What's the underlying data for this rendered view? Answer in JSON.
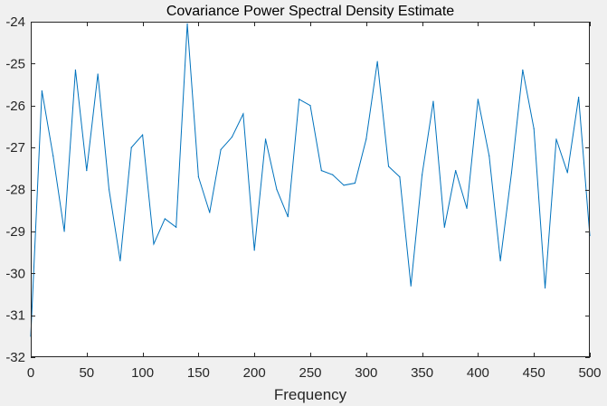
{
  "chart_data": {
    "type": "line",
    "title": "Covariance Power Spectral Density Estimate",
    "xlabel": "Frequency",
    "ylabel": "",
    "xlim": [
      0,
      500
    ],
    "ylim": [
      -32,
      -24
    ],
    "xticks": [
      0,
      50,
      100,
      150,
      200,
      250,
      300,
      350,
      400,
      450,
      500
    ],
    "yticks": [
      -32,
      -31,
      -30,
      -29,
      -28,
      -27,
      -26,
      -25,
      -24
    ],
    "xtick_labels": [
      "0",
      "50",
      "100",
      "150",
      "200",
      "250",
      "300",
      "350",
      "400",
      "450",
      "500"
    ],
    "ytick_labels": [
      "-32",
      "-31",
      "-30",
      "-29",
      "-28",
      "-27",
      "-26",
      "-25",
      "-24"
    ],
    "grid": false,
    "legend": "none",
    "series": [
      {
        "x": [
          0,
          10,
          20,
          30,
          40,
          50,
          60,
          70,
          80,
          90,
          100,
          110,
          120,
          130,
          140,
          150,
          160,
          170,
          180,
          190,
          200,
          210,
          220,
          230,
          240,
          250,
          260,
          270,
          280,
          290,
          300,
          310,
          320,
          330,
          340,
          350,
          360,
          370,
          380,
          390,
          400,
          410,
          420,
          430,
          440,
          450,
          460,
          470,
          480,
          490,
          500
        ],
        "y": [
          -31.5,
          -25.65,
          -27.2,
          -29.0,
          -25.15,
          -27.55,
          -25.25,
          -28.0,
          -29.7,
          -27.0,
          -26.7,
          -29.3,
          -28.7,
          -28.9,
          -24.05,
          -27.7,
          -28.55,
          -27.05,
          -26.75,
          -26.2,
          -29.45,
          -26.8,
          -28.0,
          -28.65,
          -25.85,
          -26.0,
          -27.55,
          -27.65,
          -27.9,
          -27.85,
          -26.8,
          -24.95,
          -27.45,
          -27.7,
          -30.3,
          -27.65,
          -25.9,
          -28.9,
          -27.55,
          -28.45,
          -25.85,
          -27.2,
          -29.7,
          -27.6,
          -25.15,
          -26.55,
          -30.35,
          -26.8,
          -27.6,
          -25.8,
          -29.1
        ]
      }
    ],
    "colors": {
      "line": "#0072bd",
      "axes": "#262626",
      "plot_background": "#ffffff",
      "figure_background": "#f0f0f0"
    }
  }
}
